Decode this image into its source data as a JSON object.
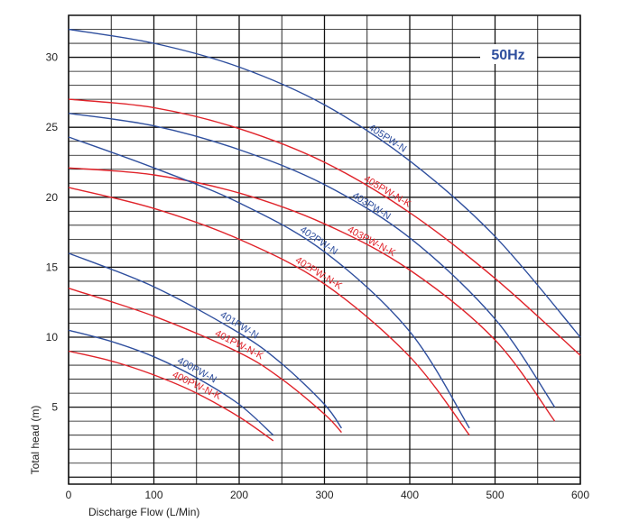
{
  "chart_data": {
    "type": "line",
    "annotation": "50Hz",
    "xlabel": "Discharge Flow (L/Min)",
    "ylabel": "Total head (m)",
    "xlim": [
      0,
      600
    ],
    "ylim": [
      -0.5,
      33
    ],
    "x_ticks": [
      "0",
      "100",
      "200",
      "300",
      "400",
      "500",
      "600"
    ],
    "y_ticks": [
      "5",
      "10",
      "15",
      "20",
      "25",
      "30"
    ],
    "grid": true,
    "colors": {
      "blue": "#2f4f9e",
      "red": "#e0242b",
      "annotation": "#2f4f9e"
    },
    "series": [
      {
        "name": "405PW-N",
        "color": "blue",
        "x": [
          0,
          100,
          200,
          300,
          400,
          500,
          600
        ],
        "y": [
          32.0,
          31.0,
          29.3,
          26.6,
          22.6,
          17.2,
          10.0
        ]
      },
      {
        "name": "405PW-N-K",
        "color": "red",
        "x": [
          0,
          100,
          200,
          300,
          400,
          500,
          600
        ],
        "y": [
          27.0,
          26.4,
          24.9,
          22.5,
          18.9,
          14.2,
          8.7
        ]
      },
      {
        "name": "403PW-N",
        "color": "blue",
        "x": [
          0,
          100,
          200,
          300,
          400,
          500,
          570
        ],
        "y": [
          26.0,
          25.1,
          23.4,
          20.9,
          17.1,
          11.3,
          5.0
        ]
      },
      {
        "name": "403PW-N-K",
        "color": "red",
        "x": [
          0,
          100,
          200,
          300,
          400,
          500,
          570
        ],
        "y": [
          22.1,
          21.6,
          20.3,
          18.1,
          14.8,
          9.8,
          4.0
        ]
      },
      {
        "name": "402PW-N",
        "color": "blue",
        "x": [
          0,
          100,
          200,
          300,
          400,
          470
        ],
        "y": [
          24.3,
          22.1,
          19.6,
          16.1,
          10.4,
          3.5
        ]
      },
      {
        "name": "402PW-N-K",
        "color": "red",
        "x": [
          0,
          100,
          200,
          300,
          400,
          470
        ],
        "y": [
          20.7,
          19.2,
          17.0,
          13.8,
          8.6,
          3.0
        ]
      },
      {
        "name": "401PW-N",
        "color": "blue",
        "x": [
          0,
          100,
          200,
          250,
          300,
          320
        ],
        "y": [
          16.0,
          13.6,
          10.3,
          8.1,
          5.2,
          3.5
        ]
      },
      {
        "name": "401PW-N-K",
        "color": "red",
        "x": [
          0,
          100,
          200,
          250,
          300,
          320
        ],
        "y": [
          13.5,
          11.5,
          8.9,
          7.0,
          4.5,
          3.2
        ]
      },
      {
        "name": "400PW-N",
        "color": "blue",
        "x": [
          0,
          50,
          100,
          150,
          200,
          240
        ],
        "y": [
          10.5,
          9.7,
          8.6,
          7.1,
          5.2,
          3.0
        ]
      },
      {
        "name": "400PW-N-K",
        "color": "red",
        "x": [
          0,
          50,
          100,
          150,
          200,
          240
        ],
        "y": [
          9.0,
          8.3,
          7.3,
          6.0,
          4.3,
          2.6
        ]
      }
    ]
  }
}
